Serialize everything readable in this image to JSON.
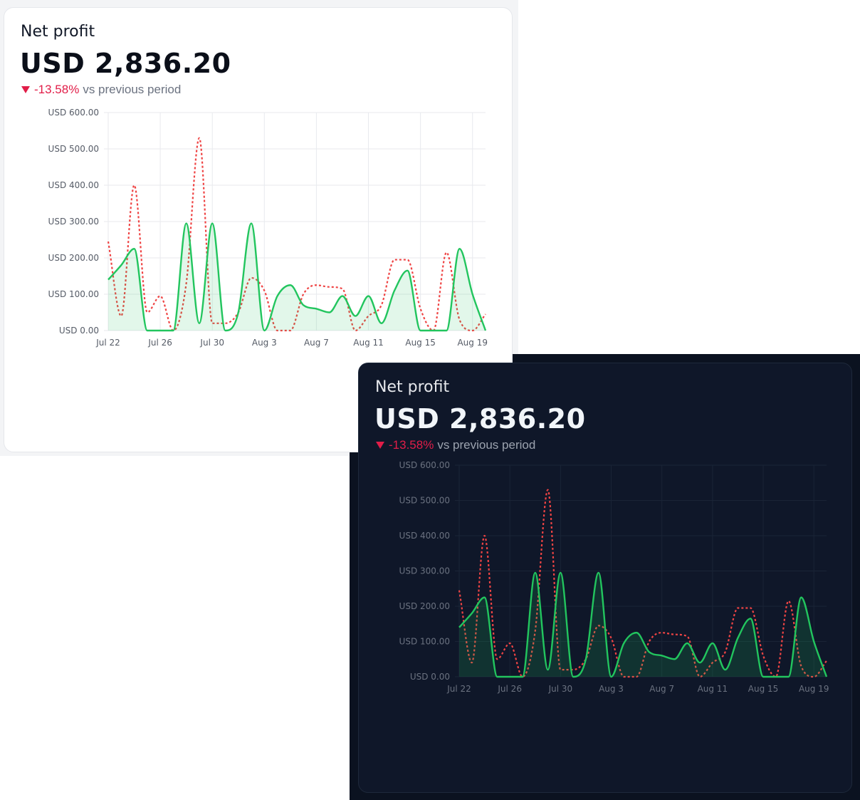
{
  "chart_data": [
    {
      "type": "line",
      "theme": "light",
      "title": "Net profit",
      "subtitle": "USD 2,836.20",
      "change": "-13.58%",
      "change_note": "vs previous period",
      "categories": [
        "Jul 22",
        null,
        null,
        null,
        "Jul 26",
        null,
        null,
        null,
        "Jul 30",
        null,
        null,
        null,
        "Aug 3",
        null,
        null,
        null,
        "Aug 7",
        null,
        null,
        null,
        "Aug 11",
        null,
        null,
        null,
        "Aug 15",
        null,
        null,
        null,
        "Aug 19",
        null
      ],
      "series": [
        {
          "color": "#22c55e",
          "area": true,
          "dashed": false,
          "values": [
            140,
            180,
            225,
            0,
            0,
            0,
            295,
            20,
            295,
            0,
            50,
            295,
            0,
            95,
            125,
            70,
            60,
            50,
            95,
            40,
            95,
            20,
            110,
            165,
            0,
            0,
            0,
            225,
            100,
            0
          ]
        },
        {
          "color": "#ef4444",
          "area": false,
          "dashed": true,
          "values": [
            245,
            40,
            400,
            50,
            95,
            0,
            130,
            530,
            20,
            20,
            50,
            145,
            110,
            0,
            0,
            100,
            125,
            120,
            115,
            0,
            40,
            70,
            195,
            195,
            60,
            0,
            215,
            30,
            0,
            45
          ]
        }
      ],
      "ylim": [
        0,
        600
      ],
      "yticks": [
        {
          "value": 0,
          "label": "USD 0.00"
        },
        {
          "value": 100,
          "label": "USD 100.00"
        },
        {
          "value": 200,
          "label": "USD 200.00"
        },
        {
          "value": 300,
          "label": "USD 300.00"
        },
        {
          "value": 400,
          "label": "USD 400.00"
        },
        {
          "value": 500,
          "label": "USD 500.00"
        },
        {
          "value": 600,
          "label": "USD 600.00"
        }
      ],
      "grid": true
    },
    {
      "type": "line",
      "theme": "dark",
      "title": "Net profit",
      "subtitle": "USD 2,836.20",
      "change": "-13.58%",
      "change_note": "vs previous period",
      "categories": [
        "Jul 22",
        null,
        null,
        null,
        "Jul 26",
        null,
        null,
        null,
        "Jul 30",
        null,
        null,
        null,
        "Aug 3",
        null,
        null,
        null,
        "Aug 7",
        null,
        null,
        null,
        "Aug 11",
        null,
        null,
        null,
        "Aug 15",
        null,
        null,
        null,
        "Aug 19",
        null
      ],
      "series": [
        {
          "color": "#22c55e",
          "area": true,
          "dashed": false,
          "values": [
            140,
            180,
            225,
            0,
            0,
            0,
            295,
            20,
            295,
            0,
            50,
            295,
            0,
            95,
            125,
            70,
            60,
            50,
            95,
            40,
            95,
            20,
            110,
            165,
            0,
            0,
            0,
            225,
            100,
            0
          ]
        },
        {
          "color": "#ef4444",
          "area": false,
          "dashed": true,
          "values": [
            245,
            40,
            400,
            50,
            95,
            0,
            130,
            530,
            20,
            20,
            50,
            145,
            110,
            0,
            0,
            100,
            125,
            120,
            115,
            0,
            40,
            70,
            195,
            195,
            60,
            0,
            215,
            30,
            0,
            45
          ]
        }
      ],
      "ylim": [
        0,
        600
      ],
      "yticks": [
        {
          "value": 0,
          "label": "USD 0.00"
        },
        {
          "value": 100,
          "label": "USD 100.00"
        },
        {
          "value": 200,
          "label": "USD 200.00"
        },
        {
          "value": 300,
          "label": "USD 300.00"
        },
        {
          "value": 400,
          "label": "USD 400.00"
        },
        {
          "value": 500,
          "label": "USD 500.00"
        },
        {
          "value": 600,
          "label": "USD 600.00"
        }
      ],
      "grid": true
    }
  ]
}
